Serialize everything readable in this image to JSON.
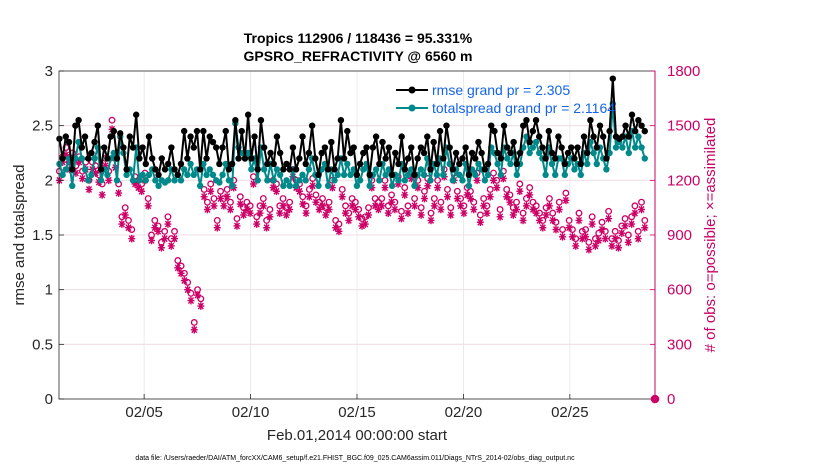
{
  "chart_data": {
    "type": "line",
    "title": "Tropics 112906 / 118436 = 95.331%",
    "subtitle": "GPSRO_REFRACTIVITY @ 6560 m",
    "xlabel": "Feb.01,2014 00:00:00 start",
    "ylabel": "rmse and totalspread",
    "ylabel_right": "# of obs: o=possible; ×=assimilated",
    "footnote": "data file: /Users/raeder/DAI/ATM_forcXX/CAM6_setup/f.e21.FHIST_BGC.f09_025.CAM6assim.011/Diags_NTrS_2014-02/obs_diag_output.nc",
    "xlim": [
      1,
      29
    ],
    "ylim": [
      0,
      3
    ],
    "ylim_right": [
      0,
      1800
    ],
    "x_ticks": [
      5,
      10,
      15,
      20,
      25
    ],
    "x_tick_labels": [
      "02/05",
      "02/10",
      "02/15",
      "02/20",
      "02/25"
    ],
    "y_ticks": [
      0,
      0.5,
      1,
      1.5,
      2,
      2.5,
      3
    ],
    "y_tick_labels": [
      "0",
      "0.5",
      "1",
      "1.5",
      "2",
      "2.5",
      "3"
    ],
    "y_right_ticks": [
      0,
      300,
      600,
      900,
      1200,
      1500,
      1800
    ],
    "y_right_tick_labels": [
      "0",
      "300",
      "600",
      "900",
      "1200",
      "1500",
      "1800"
    ],
    "grid": true,
    "legend_position": "top-right",
    "series": [
      {
        "name": "rmse grand pr = 2.305",
        "color": "#000000",
        "marker": "filled-circle",
        "axis": "left",
        "values": [
          2.38,
          2.2,
          2.4,
          2.35,
          2.1,
          2.5,
          2.55,
          2.3,
          2.4,
          2.2,
          2.25,
          2.35,
          2.5,
          2.1,
          2.3,
          2.2,
          2.4,
          2.45,
          2.2,
          2.43,
          2.3,
          2.1,
          2.4,
          2.3,
          2.6,
          2.2,
          2.3,
          2.15,
          2.4,
          2.2,
          2.1,
          2.05,
          2.2,
          2.1,
          2.15,
          2.3,
          2.1,
          2.05,
          2.15,
          2.45,
          2.2,
          2.4,
          2.3,
          2.45,
          2.1,
          2.45,
          2.2,
          2.4,
          2.35,
          2.3,
          2.15,
          2.3,
          2.45,
          2.1,
          2.15,
          2.55,
          2.2,
          2.45,
          2.2,
          2.6,
          2.2,
          2.4,
          2.1,
          2.55,
          2.3,
          2.15,
          2.25,
          2.15,
          2.4,
          2.25,
          2.1,
          2.15,
          2.1,
          2.3,
          2.1,
          2.2,
          2.4,
          2.15,
          2.25,
          2.5,
          2.2,
          2.05,
          2.25,
          2.3,
          2.1,
          2.35,
          2.1,
          2.2,
          2.55,
          2.2,
          2.45,
          2.25,
          2.3,
          2.05,
          2.15,
          2.25,
          2.3,
          2.05,
          2.3,
          2.4,
          2.15,
          2.35,
          2.2,
          2.3,
          2.05,
          2.25,
          2.15,
          2.4,
          2.1,
          2.2,
          2.3,
          2.05,
          2.2,
          2.3,
          2.25,
          2.4,
          2.1,
          2.35,
          2.15,
          2.45,
          2.2,
          2.5,
          2.3,
          2.1,
          2.25,
          2.15,
          2.2,
          2.3,
          2.05,
          2.25,
          2.2,
          2.35,
          2.25,
          2.1,
          2.15,
          2.5,
          2.45,
          2.25,
          2.2,
          2.5,
          2.3,
          2.25,
          2.35,
          2.15,
          2.25,
          2.5,
          2.55,
          2.35,
          2.45,
          2.55,
          2.4,
          2.3,
          2.2,
          2.45,
          2.25,
          2.2,
          2.4,
          2.3,
          2.15,
          2.25,
          2.3,
          2.2,
          2.3,
          2.15,
          2.4,
          2.25,
          2.55,
          2.4,
          2.3,
          2.5,
          2.4,
          2.2,
          2.45,
          2.93,
          2.4,
          2.38,
          2.4,
          2.5,
          2.4,
          2.6,
          2.45,
          2.55,
          2.5,
          2.45
        ]
      },
      {
        "name": "totalspread grand pr = 2.1164",
        "color": "#00898a",
        "marker": "filled-circle",
        "axis": "left",
        "values": [
          2.15,
          2.05,
          2.1,
          2.2,
          1.95,
          2.2,
          2.35,
          2.2,
          2.1,
          2.0,
          2.05,
          2.2,
          2.3,
          2.0,
          2.1,
          2.05,
          2.2,
          2.25,
          2.0,
          2.4,
          2.25,
          2.05,
          2.1,
          2.0,
          2.3,
          2.0,
          2.05,
          2.0,
          2.05,
          2.1,
          2.0,
          1.95,
          2.0,
          1.98,
          2.0,
          2.1,
          2.0,
          2.05,
          2.0,
          2.1,
          2.05,
          2.15,
          2.05,
          2.1,
          1.95,
          2.15,
          2.05,
          2.1,
          2.05,
          2.0,
          1.98,
          2.05,
          2.15,
          2.0,
          1.95,
          2.52,
          2.3,
          2.25,
          2.2,
          2.25,
          2.1,
          2.2,
          2.0,
          2.3,
          2.1,
          2.0,
          2.15,
          2.0,
          2.1,
          2.05,
          1.95,
          2.0,
          1.95,
          2.1,
          1.95,
          2.0,
          2.05,
          2.0,
          2.1,
          2.2,
          2.05,
          1.95,
          2.1,
          2.15,
          1.95,
          2.1,
          2.0,
          2.05,
          2.2,
          2.05,
          2.15,
          2.05,
          2.1,
          1.95,
          2.0,
          2.1,
          2.15,
          1.95,
          2.05,
          2.1,
          2.0,
          2.15,
          2.05,
          2.1,
          1.95,
          2.05,
          2.0,
          2.15,
          2.0,
          2.05,
          2.1,
          1.95,
          2.05,
          2.1,
          2.05,
          2.2,
          2.0,
          2.15,
          2.05,
          2.2,
          2.05,
          2.3,
          2.15,
          2.0,
          2.1,
          2.05,
          2.0,
          2.15,
          1.95,
          2.1,
          2.05,
          2.15,
          2.1,
          2.0,
          2.05,
          2.3,
          2.25,
          2.15,
          2.05,
          2.3,
          2.2,
          2.15,
          2.25,
          2.05,
          2.15,
          2.3,
          2.4,
          2.25,
          2.3,
          2.35,
          2.25,
          2.2,
          2.05,
          2.3,
          2.15,
          2.05,
          2.2,
          2.2,
          2.05,
          2.15,
          2.2,
          2.1,
          2.15,
          2.05,
          2.25,
          2.15,
          2.35,
          2.25,
          2.15,
          2.3,
          2.2,
          2.1,
          2.25,
          2.7,
          2.3,
          2.35,
          2.3,
          2.4,
          2.25,
          2.45,
          2.3,
          2.4,
          2.3,
          2.2
        ]
      },
      {
        "name": "# of obs possible",
        "color": "#cc0066",
        "marker": "open-circle",
        "axis": "right",
        "values": [
          1250,
          1330,
          1380,
          1300,
          1350,
          1280,
          1330,
          1250,
          1300,
          1200,
          1300,
          1280,
          1230,
          1180,
          1320,
          1250,
          1530,
          1320,
          1180,
          1000,
          1050,
          980,
          930,
          1220,
          1200,
          1180,
          1240,
          1100,
          900,
          980,
          950,
          860,
          920,
          1000,
          880,
          920,
          760,
          730,
          690,
          640,
          580,
          420,
          600,
          550,
          1150,
          1080,
          1180,
          1100,
          980,
          1140,
          1100,
          1150,
          1080,
          1200,
          990,
          1110,
          1050,
          1080,
          1060,
          1220,
          1000,
          1060,
          1100,
          980,
          1040,
          1200,
          1180,
          1060,
          1100,
          1050,
          1080,
          1260,
          1200,
          1180,
          1110,
          1060,
          1150,
          1210,
          1120,
          1080,
          1100,
          1050,
          1080,
          1200,
          980,
          960,
          1150,
          1060,
          1020,
          1100,
          1080,
          1040,
          990,
          1000,
          1050,
          1200,
          1100,
          1080,
          1100,
          1200,
          1060,
          1120,
          1080,
          1220,
          1030,
          1160,
          1060,
          1250,
          1100,
          1200,
          1050,
          1140,
          1210,
          1020,
          1100,
          1200,
          1080,
          1260,
          1150,
          1050,
          1240,
          1140,
          1100,
          1060,
          1160,
          1140,
          1080,
          1240,
          1010,
          1100,
          1060,
          1150,
          1240,
          1200,
          1040,
          1250,
          1150,
          1120,
          1050,
          1080,
          1180,
          1020,
          1100,
          1160,
          1080,
          1060,
          1020,
          980,
          1050,
          1100,
          1020,
          970,
          1080,
          930,
          1130,
          980,
          930,
          880,
          1020,
          920,
          930,
          860,
          1000,
          880,
          910,
          970,
          920,
          1030,
          880,
          920,
          870,
          950,
          990,
          900,
          1000,
          1060,
          920,
          1080,
          980
        ]
      },
      {
        "name": "# of obs assimilated",
        "color": "#cc0066",
        "marker": "asterisk",
        "axis": "right",
        "values": [
          1200,
          1300,
          1340,
          1260,
          1320,
          1240,
          1300,
          1210,
          1260,
          1150,
          1260,
          1240,
          1190,
          1120,
          1280,
          1200,
          1480,
          1270,
          1130,
          960,
          1010,
          940,
          880,
          1180,
          1160,
          1140,
          1200,
          1060,
          870,
          940,
          920,
          830,
          880,
          960,
          840,
          880,
          720,
          690,
          650,
          600,
          540,
          380,
          570,
          510,
          1110,
          1040,
          1140,
          1060,
          940,
          1100,
          1060,
          1110,
          1040,
          1160,
          950,
          1070,
          1010,
          1040,
          1020,
          1180,
          960,
          1020,
          1060,
          940,
          1000,
          1160,
          1140,
          1020,
          1060,
          1010,
          1040,
          1220,
          1160,
          1140,
          1070,
          1020,
          1110,
          1170,
          1080,
          1040,
          1060,
          1010,
          1040,
          1160,
          940,
          920,
          1110,
          1020,
          980,
          1060,
          1040,
          1000,
          950,
          960,
          1010,
          1160,
          1060,
          1040,
          1060,
          1160,
          1020,
          1080,
          1040,
          1180,
          990,
          1120,
          1020,
          1210,
          1060,
          1160,
          1010,
          1100,
          1170,
          980,
          1060,
          1160,
          1040,
          1220,
          1110,
          1010,
          1200,
          1100,
          1060,
          1020,
          1120,
          1100,
          1040,
          1200,
          970,
          1060,
          1020,
          1110,
          1200,
          1160,
          1000,
          1210,
          1110,
          1080,
          1010,
          1040,
          1140,
          980,
          1060,
          1120,
          1040,
          1020,
          980,
          940,
          1010,
          1060,
          980,
          930,
          1040,
          890,
          1090,
          940,
          890,
          840,
          980,
          880,
          890,
          820,
          960,
          840,
          870,
          930,
          880,
          990,
          840,
          880,
          830,
          910,
          950,
          860,
          960,
          1020,
          880,
          1040,
          940
        ]
      }
    ]
  },
  "extra_marker": {
    "label": "0",
    "note": "filled asterisk at right axis zero"
  }
}
